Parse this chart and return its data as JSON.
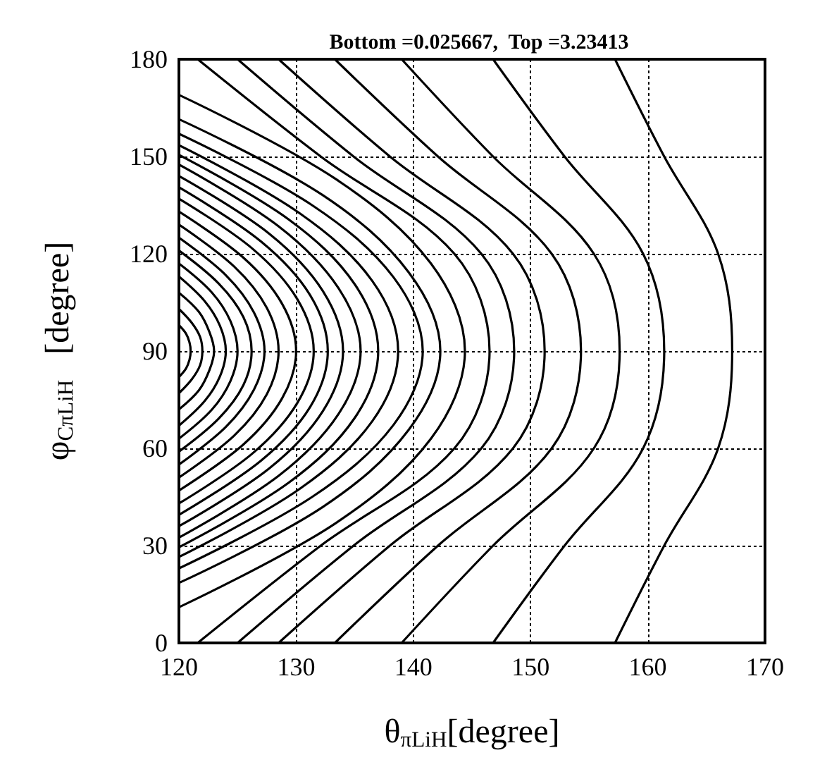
{
  "chart_data": {
    "type": "line",
    "title": "Bottom =0.025667,  Top =3.23413",
    "xlabel": "θ$_{πLiH}$[degree]",
    "ylabel": "φ$_{CπLiH}$   [degree]",
    "xlim": [
      120,
      170
    ],
    "xticks": [
      120,
      130,
      140,
      150,
      160,
      170
    ],
    "ylim": [
      0,
      180
    ],
    "yticks": [
      0,
      30,
      60,
      90,
      120,
      150,
      180
    ],
    "grid": true,
    "marker": "none",
    "series": [
      {
        "color": "#000000",
        "x": [
          157.2,
          161.4,
          166,
          167.2,
          166,
          161.4,
          157.2
        ],
        "values": [
          0,
          30,
          60,
          90,
          120,
          150,
          180
        ]
      },
      {
        "color": "#000000",
        "x": [
          146.8,
          152.9,
          159.6,
          161.4,
          159.6,
          152.9,
          146.8
        ],
        "values": [
          0,
          30,
          60,
          90,
          120,
          150,
          180
        ]
      },
      {
        "color": "#000000",
        "x": [
          139,
          146.8,
          155.4,
          157.6,
          155.4,
          146.8,
          139
        ],
        "values": [
          0,
          30,
          60,
          90,
          120,
          150,
          180
        ]
      },
      {
        "color": "#000000",
        "x": [
          133.3,
          142.1,
          151.8,
          154.3,
          151.8,
          142.1,
          133.3
        ],
        "values": [
          0,
          30,
          60,
          90,
          120,
          150,
          180
        ]
      },
      {
        "color": "#000000",
        "x": [
          128.5,
          138,
          148.5,
          151.2,
          148.5,
          138,
          128.5
        ],
        "values": [
          0,
          30,
          60,
          90,
          120,
          150,
          180
        ]
      },
      {
        "color": "#000000",
        "x": [
          125,
          134.9,
          145.8,
          148.6,
          145.8,
          134.9,
          125
        ],
        "values": [
          0,
          30,
          60,
          90,
          120,
          150,
          180
        ]
      },
      {
        "color": "#000000",
        "x": [
          121.6,
          132.1,
          143.5,
          146.5,
          143.5,
          132.1,
          121.6
        ],
        "values": [
          0,
          30,
          60,
          90,
          120,
          150,
          180
        ]
      },
      {
        "color": "#000000",
        "x": [
          120,
          133.4,
          141.5,
          144.4,
          141.5,
          133.4,
          120
        ],
        "values": [
          11,
          37,
          63,
          90,
          117,
          143,
          169
        ]
      },
      {
        "color": "#000000",
        "x": [
          120,
          132.3,
          139.6,
          142.3,
          139.6,
          132.3,
          120
        ],
        "values": [
          18.5,
          42,
          65.7,
          90,
          114.3,
          138,
          161.5
        ]
      },
      {
        "color": "#000000",
        "x": [
          120,
          131.4,
          138.3,
          140.8,
          138.3,
          131.4,
          120
        ],
        "values": [
          23,
          45.1,
          67.2,
          90,
          112.8,
          134.9,
          157
        ]
      },
      {
        "color": "#000000",
        "x": [
          120,
          130.3,
          136.5,
          138.7,
          136.5,
          130.3,
          120
        ],
        "values": [
          26.5,
          47.5,
          68.4,
          90,
          111.6,
          132.5,
          153.5
        ]
      },
      {
        "color": "#000000",
        "x": [
          120,
          129.4,
          135,
          137,
          135,
          129.4,
          120
        ],
        "values": [
          29.5,
          49.5,
          69.4,
          90,
          110.6,
          130.5,
          150.5
        ]
      },
      {
        "color": "#000000",
        "x": [
          120,
          128.5,
          133.6,
          135.5,
          133.6,
          128.5,
          120
        ],
        "values": [
          32.5,
          51.5,
          70.5,
          90,
          109.5,
          128.5,
          147.5
        ]
      },
      {
        "color": "#000000",
        "x": [
          120,
          127.7,
          132.3,
          134,
          132.3,
          127.7,
          120
        ],
        "values": [
          36,
          53.8,
          71.6,
          90,
          108.4,
          126.2,
          144
        ]
      },
      {
        "color": "#000000",
        "x": [
          120,
          127,
          131.2,
          132.7,
          131.2,
          127,
          120
        ],
        "values": [
          39.5,
          56.2,
          72.8,
          90,
          107.2,
          123.8,
          140.5
        ]
      },
      {
        "color": "#000000",
        "x": [
          120,
          126.3,
          130.1,
          131.5,
          130.1,
          126.3,
          120
        ],
        "values": [
          43,
          58.5,
          74,
          90,
          106,
          121.5,
          137
        ]
      },
      {
        "color": "#000000",
        "x": [
          120,
          125.5,
          128.8,
          130,
          128.8,
          125.5,
          120
        ],
        "values": [
          47,
          61.2,
          75.4,
          90,
          104.6,
          118.8,
          133
        ]
      },
      {
        "color": "#000000",
        "x": [
          120,
          124.7,
          127.5,
          128.5,
          127.5,
          124.7,
          120
        ],
        "values": [
          51,
          63.9,
          76.7,
          90,
          103.3,
          116.1,
          129
        ]
      },
      {
        "color": "#000000",
        "x": [
          120,
          124,
          126.4,
          127.3,
          126.4,
          124,
          120
        ],
        "values": [
          55,
          66.6,
          78.1,
          90,
          101.9,
          113.4,
          125
        ]
      },
      {
        "color": "#000000",
        "x": [
          120,
          123.4,
          125.5,
          126.2,
          125.5,
          123.4,
          120
        ],
        "values": [
          59,
          69.2,
          79.5,
          90,
          100.5,
          110.8,
          121
        ]
      },
      {
        "color": "#000000",
        "x": [
          120,
          122.8,
          124.4,
          125,
          124.4,
          122.8,
          120
        ],
        "values": [
          63,
          71.9,
          80.8,
          90,
          99.2,
          108.1,
          117
        ]
      },
      {
        "color": "#000000",
        "x": [
          120,
          122.2,
          123.5,
          124,
          123.5,
          122.2,
          120
        ],
        "values": [
          67,
          74.6,
          82.2,
          90,
          97.8,
          105.4,
          113
        ]
      },
      {
        "color": "#000000",
        "x": [
          120,
          121.7,
          122.6,
          123,
          122.6,
          121.7,
          120
        ],
        "values": [
          72,
          77.9,
          84.1,
          90,
          95.9,
          102.1,
          108
        ]
      },
      {
        "color": "#000000",
        "x": [
          120,
          121.1,
          121.8,
          122,
          121.8,
          121.1,
          120
        ],
        "values": [
          77,
          81.3,
          85.6,
          90,
          94.4,
          98.7,
          103
        ]
      },
      {
        "color": "#000000",
        "x": [
          120,
          120.6,
          120.9,
          121,
          120.9,
          120.6,
          120
        ],
        "values": [
          82,
          84.6,
          87.3,
          90,
          92.7,
          95.4,
          98
        ]
      }
    ]
  }
}
